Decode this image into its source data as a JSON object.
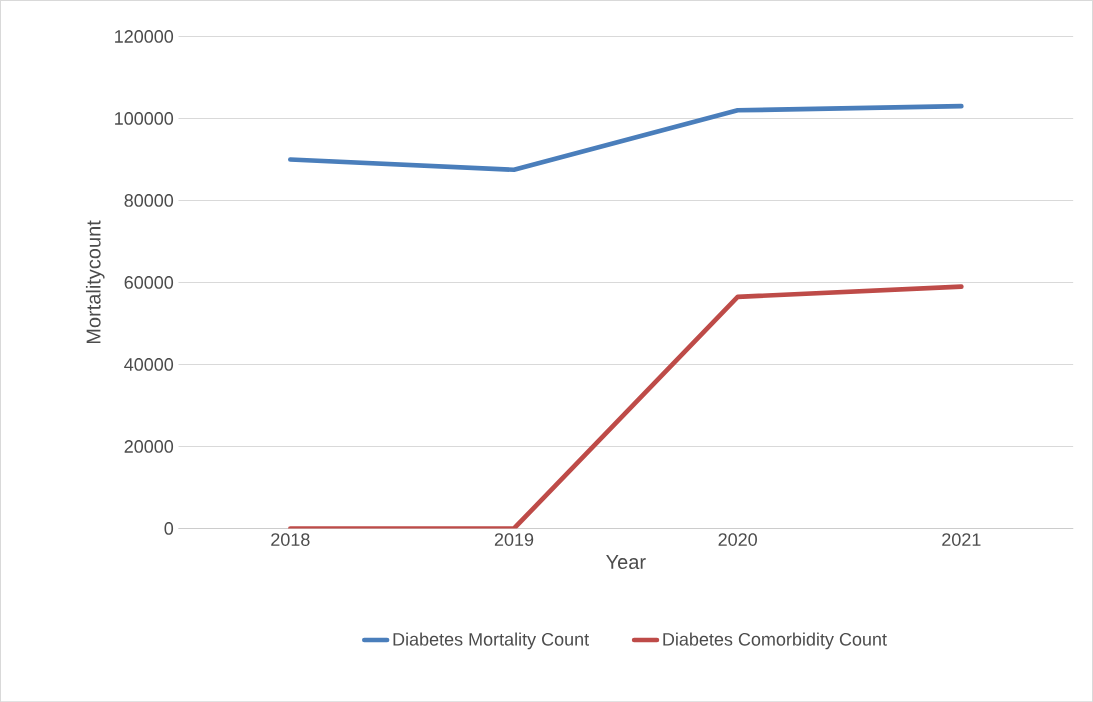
{
  "chart_data": {
    "type": "line",
    "xlabel": "Year",
    "ylabel": "Mortalitycount",
    "categories": [
      "2018",
      "2019",
      "2020",
      "2021"
    ],
    "series": [
      {
        "name": "Diabetes Mortality Count",
        "color": "#4a7ebb",
        "values": [
          90000,
          87500,
          102000,
          103000
        ]
      },
      {
        "name": "Diabetes Comorbidity Count",
        "color": "#be4b48",
        "values": [
          0,
          0,
          56500,
          59000
        ]
      }
    ],
    "ylim": [
      0,
      120000
    ],
    "yticks": [
      0,
      20000,
      40000,
      60000,
      80000,
      100000,
      120000
    ],
    "grid": "y",
    "legend": "bottom",
    "line_style": "solid"
  }
}
